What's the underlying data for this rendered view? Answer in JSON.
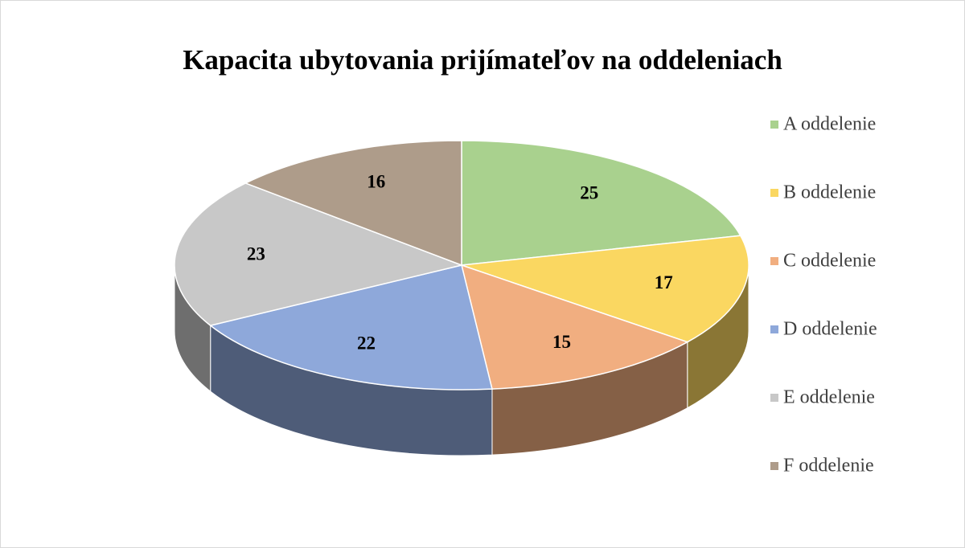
{
  "chart_data": {
    "type": "pie",
    "title": "Kapacita ubytovania prijímateľov na oddeleniach",
    "categories": [
      "A oddelenie",
      "B oddelenie",
      "C oddelenie",
      "D oddelenie",
      "E oddelenie",
      "F oddelenie"
    ],
    "values": [
      25,
      17,
      15,
      22,
      23,
      16
    ],
    "colors": [
      "#a9d18e",
      "#fad761",
      "#f1ae80",
      "#8ea8da",
      "#c8c8c8",
      "#ae9c8a"
    ],
    "legend": "right"
  }
}
